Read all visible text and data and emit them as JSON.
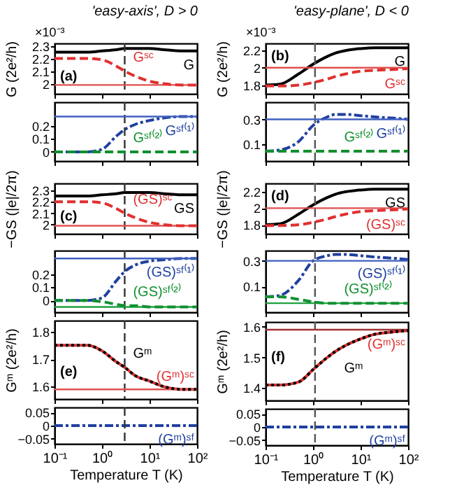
{
  "chart_data": [
    {
      "type": "line",
      "title": "'easy-axis', D > 0",
      "ylabel": "G (2e²/h)",
      "annotations": [
        "×10⁻³",
        "(a)"
      ],
      "x": [
        0.1,
        0.2,
        0.5,
        1,
        2,
        3,
        5,
        10,
        20,
        50,
        100
      ],
      "xlim": [
        0.1,
        100
      ],
      "log": "x",
      "xticks": [
        {
          "value": 0.1,
          "label": null
        },
        {
          "value": 1,
          "label": null
        },
        {
          "value": 10,
          "label": null
        },
        {
          "value": 100,
          "label": null
        }
      ],
      "ylim": [
        1.92,
        2.32
      ],
      "yticks": [
        2,
        2.1,
        2.2,
        2.3
      ],
      "tick_labels": "y",
      "series": [
        {
          "name": "G",
          "color": "#000000",
          "line_style": "solid",
          "values": [
            2.25,
            2.25,
            2.25,
            2.26,
            2.27,
            2.28,
            2.28,
            2.28,
            2.27,
            2.26,
            2.26
          ]
        },
        {
          "name": "Gˢᶜ",
          "color": "#e03030",
          "line_style": "dashed",
          "values": [
            2.2,
            2.2,
            2.2,
            2.19,
            2.14,
            2.1,
            2.06,
            2.02,
            2.0,
            1.99,
            1.99
          ]
        }
      ],
      "ref_lines": [
        {
          "axis": "y",
          "value": 1.99,
          "color": "#e05050",
          "line_style": "solid"
        },
        {
          "axis": "x",
          "value": 3,
          "color": "#333333",
          "line_style": "dashed"
        }
      ]
    },
    {
      "type": "line",
      "x": [
        0.1,
        0.2,
        0.5,
        1,
        2,
        3,
        5,
        10,
        20,
        50,
        100
      ],
      "xlim": [
        0.1,
        100
      ],
      "log": "x",
      "xticks": [
        {
          "value": 0.1,
          "label": null
        },
        {
          "value": 1,
          "label": null
        },
        {
          "value": 10,
          "label": null
        },
        {
          "value": 100,
          "label": null
        }
      ],
      "ylim": [
        -0.07,
        0.38
      ],
      "yticks": [
        0,
        0.1,
        0.2
      ],
      "tick_labels": "y",
      "series": [
        {
          "name": "Gˢᶠ⁽¹⁾",
          "color": "#2040a0",
          "line_style": "dashdot",
          "values": [
            0,
            0,
            0,
            0.02,
            0.12,
            0.17,
            0.21,
            0.24,
            0.26,
            0.27,
            0.27
          ]
        },
        {
          "name": "Gˢᶠ⁽²⁾",
          "color": "#109030",
          "line_style": "dashed",
          "values": [
            0,
            0,
            0,
            0,
            0,
            0,
            0,
            0,
            0,
            0,
            0
          ]
        }
      ],
      "ref_lines": [
        {
          "axis": "y",
          "value": 0.27,
          "color": "#4060c0",
          "line_style": "solid"
        },
        {
          "axis": "x",
          "value": 3,
          "color": "#333333",
          "line_style": "dashed"
        }
      ]
    },
    {
      "type": "line",
      "ylabel": "−GS (|e|/2π)",
      "annotations": [
        "(c)"
      ],
      "x": [
        0.1,
        0.2,
        0.5,
        1,
        2,
        3,
        5,
        10,
        20,
        50,
        100
      ],
      "xlim": [
        0.1,
        100
      ],
      "log": "x",
      "xticks": [
        {
          "value": 0.1,
          "label": null
        },
        {
          "value": 1,
          "label": null
        },
        {
          "value": 10,
          "label": null
        },
        {
          "value": 100,
          "label": null
        }
      ],
      "ylim": [
        1.92,
        2.36
      ],
      "yticks": [
        2,
        2.1,
        2.2,
        2.3
      ],
      "tick_labels": "y",
      "series": [
        {
          "name": "GS",
          "color": "#000000",
          "line_style": "solid",
          "values": [
            2.25,
            2.25,
            2.25,
            2.26,
            2.27,
            2.28,
            2.28,
            2.28,
            2.27,
            2.26,
            2.26
          ]
        },
        {
          "name": "(GS)ˢᶜ",
          "color": "#e03030",
          "line_style": "dashed",
          "values": [
            2.2,
            2.2,
            2.2,
            2.19,
            2.14,
            2.1,
            2.06,
            2.02,
            2.0,
            1.99,
            1.99
          ]
        }
      ],
      "ref_lines": [
        {
          "axis": "y",
          "value": 1.99,
          "color": "#e05050",
          "line_style": "solid"
        },
        {
          "axis": "x",
          "value": 3,
          "color": "#333333",
          "line_style": "dashed"
        }
      ]
    },
    {
      "type": "line",
      "x": [
        0.1,
        0.2,
        0.5,
        1,
        2,
        3,
        5,
        10,
        20,
        50,
        100
      ],
      "xlim": [
        0.1,
        100
      ],
      "log": "x",
      "xticks": [
        {
          "value": 0.1,
          "label": null
        },
        {
          "value": 1,
          "label": null
        },
        {
          "value": 10,
          "label": null
        },
        {
          "value": 100,
          "label": null
        }
      ],
      "ylim": [
        -0.09,
        0.38
      ],
      "yticks": [
        0,
        0.1,
        0.2
      ],
      "tick_labels": "y",
      "series": [
        {
          "name": "(GS)ˢᶠ⁽¹⁾",
          "color": "#2040a0",
          "line_style": "dashdot",
          "values": [
            0,
            0,
            0,
            0.02,
            0.15,
            0.22,
            0.27,
            0.3,
            0.31,
            0.32,
            0.32
          ]
        },
        {
          "name": "(GS)ˢᶠ⁽²⁾",
          "color": "#109030",
          "line_style": "dashed",
          "values": [
            0,
            0,
            0,
            -0.01,
            -0.03,
            -0.04,
            -0.04,
            -0.05,
            -0.05,
            -0.05,
            -0.05
          ]
        }
      ],
      "ref_lines": [
        {
          "axis": "y",
          "value": 0.32,
          "color": "#4060c0",
          "line_style": "solid"
        },
        {
          "axis": "y",
          "value": -0.05,
          "color": "#20a040",
          "line_style": "solid"
        },
        {
          "axis": "x",
          "value": 3,
          "color": "#333333",
          "line_style": "dashed"
        }
      ]
    },
    {
      "type": "line",
      "ylabel": "Gᵐ (2e²/h)",
      "annotations": [
        "(e)"
      ],
      "x": [
        0.1,
        0.2,
        0.5,
        1,
        2,
        3,
        5,
        10,
        20,
        50,
        100
      ],
      "xlim": [
        0.1,
        100
      ],
      "log": "x",
      "xticks": [
        {
          "value": 0.1,
          "label": null
        },
        {
          "value": 1,
          "label": null
        },
        {
          "value": 10,
          "label": null
        },
        {
          "value": 100,
          "label": null
        }
      ],
      "ylim": [
        1.555,
        1.84
      ],
      "yticks": [
        1.6,
        1.7,
        1.8
      ],
      "tick_labels": "y",
      "series": [
        {
          "name": "(Gᵐ)ˢᶜ",
          "color": "#e03030",
          "line_style": "solid",
          "values": [
            1.75,
            1.75,
            1.75,
            1.73,
            1.69,
            1.67,
            1.64,
            1.62,
            1.6,
            1.59,
            1.59
          ]
        },
        {
          "name": "Gᵐ",
          "color": "#000000",
          "line_style": "dotted",
          "values": [
            1.75,
            1.75,
            1.75,
            1.73,
            1.69,
            1.67,
            1.64,
            1.62,
            1.6,
            1.59,
            1.59
          ]
        }
      ],
      "ref_lines": [
        {
          "axis": "y",
          "value": 1.59,
          "color": "#e05050",
          "line_style": "solid"
        },
        {
          "axis": "x",
          "value": 3,
          "color": "#333333",
          "line_style": "dashed"
        }
      ]
    },
    {
      "type": "line",
      "xlabel": "Temperature T (K)",
      "x": [
        0.1,
        0.2,
        0.5,
        1,
        2,
        3,
        5,
        10,
        20,
        50,
        100
      ],
      "xlim": [
        0.1,
        100
      ],
      "log": "x",
      "xticks": [
        {
          "value": 0.1,
          "label": "10⁻¹"
        },
        {
          "value": 1,
          "label": "10⁰"
        },
        {
          "value": 10,
          "label": "10¹"
        },
        {
          "value": 100,
          "label": "10²"
        }
      ],
      "ylim": [
        -0.07,
        0.07
      ],
      "yticks": [
        -0.05,
        0,
        0.05
      ],
      "series": [
        {
          "name": "(Gᵐ)ˢᶠ",
          "color": "#2040a0",
          "line_style": "dashdot",
          "values": [
            0,
            0,
            0,
            0,
            0,
            0,
            0,
            0,
            0,
            0,
            0
          ]
        }
      ],
      "ref_lines": [
        {
          "axis": "x",
          "value": 3,
          "color": "#333333",
          "line_style": "dashed"
        }
      ]
    },
    {
      "type": "line",
      "title": "'easy-plane', D < 0",
      "ylabel": "G (2e²/h)",
      "annotations": [
        "×10⁻³",
        "(b)"
      ],
      "x": [
        0.1,
        0.2,
        0.5,
        1,
        2,
        3,
        5,
        10,
        20,
        50,
        100
      ],
      "xlim": [
        0.1,
        100
      ],
      "log": "x",
      "xticks": [
        {
          "value": 0.1,
          "label": null
        },
        {
          "value": 1,
          "label": null
        },
        {
          "value": 10,
          "label": null
        },
        {
          "value": 100,
          "label": null
        }
      ],
      "ylim": [
        1.7,
        2.28
      ],
      "yticks": [
        1.8,
        2,
        2.2
      ],
      "tick_labels": "y",
      "series": [
        {
          "name": "G",
          "color": "#000000",
          "line_style": "solid",
          "values": [
            1.8,
            1.81,
            1.93,
            2.04,
            2.13,
            2.17,
            2.2,
            2.22,
            2.23,
            2.23,
            2.23
          ]
        },
        {
          "name": "Gˢᶜ",
          "color": "#e03030",
          "line_style": "dashed",
          "values": [
            1.79,
            1.79,
            1.8,
            1.83,
            1.87,
            1.9,
            1.93,
            1.96,
            1.97,
            1.98,
            1.99
          ]
        }
      ],
      "ref_lines": [
        {
          "axis": "y",
          "value": 2.0,
          "color": "#e05050",
          "line_style": "solid"
        },
        {
          "axis": "x",
          "value": 1.1,
          "color": "#555555",
          "line_style": "dashed"
        }
      ]
    },
    {
      "type": "line",
      "x": [
        0.1,
        0.2,
        0.5,
        1,
        2,
        3,
        5,
        10,
        20,
        50,
        100
      ],
      "xlim": [
        0.1,
        100
      ],
      "log": "x",
      "xticks": [
        {
          "value": 0.1,
          "label": null
        },
        {
          "value": 1,
          "label": null
        },
        {
          "value": 10,
          "label": null
        },
        {
          "value": 100,
          "label": null
        }
      ],
      "ylim": [
        -0.04,
        0.44
      ],
      "yticks": [
        0.1,
        0.3
      ],
      "tick_labels": "y",
      "series": [
        {
          "name": "Gˢᶠ⁽¹⁾",
          "color": "#2040a0",
          "line_style": "dashdot",
          "values": [
            0.04,
            0.05,
            0.12,
            0.25,
            0.32,
            0.34,
            0.34,
            0.33,
            0.32,
            0.31,
            0.3
          ]
        },
        {
          "name": "Gˢᶠ⁽²⁾",
          "color": "#109030",
          "line_style": "dashed",
          "values": [
            0.04,
            0.04,
            0.04,
            0.04,
            0.04,
            0.04,
            0.04,
            0.04,
            0.04,
            0.04,
            0.04
          ]
        }
      ],
      "ref_lines": [
        {
          "axis": "y",
          "value": 0.3,
          "color": "#4060c0",
          "line_style": "solid"
        },
        {
          "axis": "x",
          "value": 1.1,
          "color": "#555555",
          "line_style": "dashed"
        }
      ]
    },
    {
      "type": "line",
      "ylabel": "−GS (|e|/2π)",
      "annotations": [
        "(d)"
      ],
      "x": [
        0.1,
        0.2,
        0.5,
        1,
        2,
        3,
        5,
        10,
        20,
        50,
        100
      ],
      "xlim": [
        0.1,
        100
      ],
      "log": "x",
      "xticks": [
        {
          "value": 0.1,
          "label": null
        },
        {
          "value": 1,
          "label": null
        },
        {
          "value": 10,
          "label": null
        },
        {
          "value": 100,
          "label": null
        }
      ],
      "ylim": [
        1.69,
        2.3
      ],
      "yticks": [
        1.8,
        2,
        2.2
      ],
      "tick_labels": "y",
      "series": [
        {
          "name": "GS",
          "color": "#000000",
          "line_style": "solid",
          "values": [
            1.8,
            1.81,
            1.93,
            2.04,
            2.13,
            2.17,
            2.2,
            2.22,
            2.23,
            2.23,
            2.23
          ]
        },
        {
          "name": "(GS)ˢᶜ",
          "color": "#e03030",
          "line_style": "dashed",
          "values": [
            1.79,
            1.79,
            1.8,
            1.83,
            1.87,
            1.9,
            1.93,
            1.96,
            1.97,
            1.98,
            1.99
          ]
        }
      ],
      "ref_lines": [
        {
          "axis": "y",
          "value": 2.0,
          "color": "#e05050",
          "line_style": "solid"
        },
        {
          "axis": "x",
          "value": 1.1,
          "color": "#555555",
          "line_style": "dashed"
        }
      ]
    },
    {
      "type": "line",
      "x": [
        0.1,
        0.2,
        0.5,
        1,
        2,
        3,
        5,
        10,
        20,
        50,
        100
      ],
      "xlim": [
        0.1,
        100
      ],
      "log": "x",
      "xticks": [
        {
          "value": 0.1,
          "label": null
        },
        {
          "value": 1,
          "label": null
        },
        {
          "value": 10,
          "label": null
        },
        {
          "value": 100,
          "label": null
        }
      ],
      "ylim": [
        -0.1,
        0.38
      ],
      "yticks": [
        0.1,
        0.3
      ],
      "tick_labels": "y",
      "series": [
        {
          "name": "(GS)ˢᶠ⁽¹⁾",
          "color": "#2040a0",
          "line_style": "dashdot",
          "values": [
            0.02,
            0.03,
            0.15,
            0.3,
            0.34,
            0.35,
            0.35,
            0.34,
            0.33,
            0.32,
            0.31
          ]
        },
        {
          "name": "(GS)ˢᶠ⁽²⁾",
          "color": "#109030",
          "line_style": "dashed",
          "values": [
            0.02,
            0.02,
            0,
            -0.02,
            -0.03,
            -0.03,
            -0.03,
            -0.03,
            -0.03,
            -0.03,
            -0.03
          ]
        }
      ],
      "ref_lines": [
        {
          "axis": "y",
          "value": 0.3,
          "color": "#4060c0",
          "line_style": "solid"
        },
        {
          "axis": "y",
          "value": -0.03,
          "color": "#20a040",
          "line_style": "solid"
        },
        {
          "axis": "x",
          "value": 1.1,
          "color": "#555555",
          "line_style": "dashed"
        }
      ]
    },
    {
      "type": "line",
      "ylabel": "Gᵐ (2e²/h)",
      "annotations": [
        "(f)"
      ],
      "x": [
        0.1,
        0.2,
        0.5,
        1,
        2,
        3,
        5,
        10,
        20,
        50,
        100
      ],
      "xlim": [
        0.1,
        100
      ],
      "log": "x",
      "xticks": [
        {
          "value": 0.1,
          "label": null
        },
        {
          "value": 1,
          "label": null
        },
        {
          "value": 10,
          "label": null
        },
        {
          "value": 100,
          "label": null
        }
      ],
      "ylim": [
        1.36,
        1.615
      ],
      "yticks": [
        1.4,
        1.5,
        1.6
      ],
      "tick_labels": "y",
      "series": [
        {
          "name": "(Gᵐ)ˢᶜ",
          "color": "#e03030",
          "line_style": "solid",
          "values": [
            1.41,
            1.41,
            1.42,
            1.46,
            1.5,
            1.52,
            1.54,
            1.56,
            1.575,
            1.583,
            1.587
          ]
        },
        {
          "name": "Gᵐ",
          "color": "#000000",
          "line_style": "dotted",
          "values": [
            1.41,
            1.41,
            1.42,
            1.46,
            1.5,
            1.52,
            1.54,
            1.56,
            1.575,
            1.583,
            1.587
          ]
        }
      ],
      "ref_lines": [
        {
          "axis": "y",
          "value": 1.59,
          "color": "#a03030",
          "line_style": "solid"
        },
        {
          "axis": "x",
          "value": 1.1,
          "color": "#555555",
          "line_style": "dashed"
        }
      ]
    },
    {
      "type": "line",
      "xlabel": "Temperature T (K)",
      "x": [
        0.1,
        0.2,
        0.5,
        1,
        2,
        3,
        5,
        10,
        20,
        50,
        100
      ],
      "xlim": [
        0.1,
        100
      ],
      "log": "x",
      "xticks": [
        {
          "value": 0.1,
          "label": "10⁻¹"
        },
        {
          "value": 1,
          "label": "10⁰"
        },
        {
          "value": 10,
          "label": "10¹"
        },
        {
          "value": 100,
          "label": "10²"
        }
      ],
      "ylim": [
        -0.07,
        0.07
      ],
      "yticks": [
        -0.05,
        0,
        0.05
      ],
      "series": [
        {
          "name": "(Gᵐ)ˢᶠ",
          "color": "#2040a0",
          "line_style": "dashdot",
          "values": [
            0,
            0,
            0,
            0,
            0,
            0,
            0,
            0,
            0,
            0,
            0
          ]
        }
      ],
      "ref_lines": [
        {
          "axis": "x",
          "value": 1.1,
          "color": "#555555",
          "line_style": "dashed"
        }
      ]
    }
  ]
}
